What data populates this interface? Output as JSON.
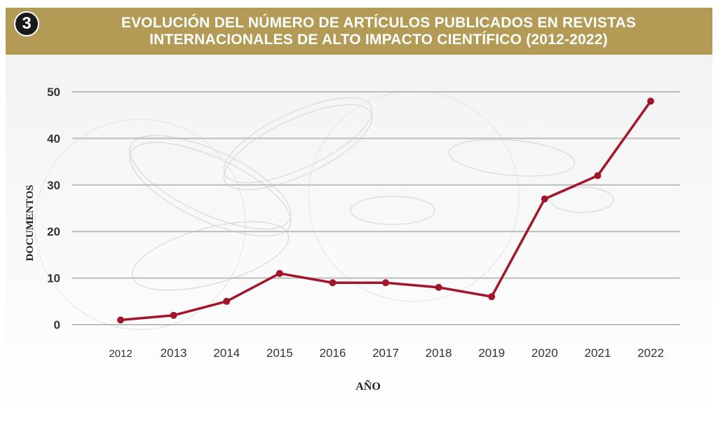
{
  "header": {
    "badge": "3",
    "title_line1": "EVOLUCIÓN DEL NÚMERO DE ARTÍCULOS PUBLICADOS EN REVISTAS",
    "title_line2": "INTERNACIONALES DE ALTO IMPACTO CIENTÍFICO (2012-2022)"
  },
  "colors": {
    "header_bg": "#b39a55",
    "line": "#a3162a",
    "grid": "#bdbdbd"
  },
  "chart_data": {
    "type": "line",
    "title": "EVOLUCIÓN DEL NÚMERO DE ARTÍCULOS PUBLICADOS EN REVISTAS INTERNACIONALES DE ALTO IMPACTO CIENTÍFICO (2012-2022)",
    "xlabel": "AÑO",
    "ylabel": "DOCUMENTOS",
    "categories": [
      "2012",
      "2013",
      "2014",
      "2015",
      "2016",
      "2017",
      "2018",
      "2019",
      "2020",
      "2021",
      "2022"
    ],
    "values": [
      1,
      2,
      5,
      11,
      9,
      9,
      8,
      6,
      27,
      32,
      48
    ],
    "yticks": [
      0,
      10,
      20,
      30,
      40,
      50
    ],
    "ylim": [
      0,
      50
    ],
    "grid": true,
    "legend": "none"
  }
}
